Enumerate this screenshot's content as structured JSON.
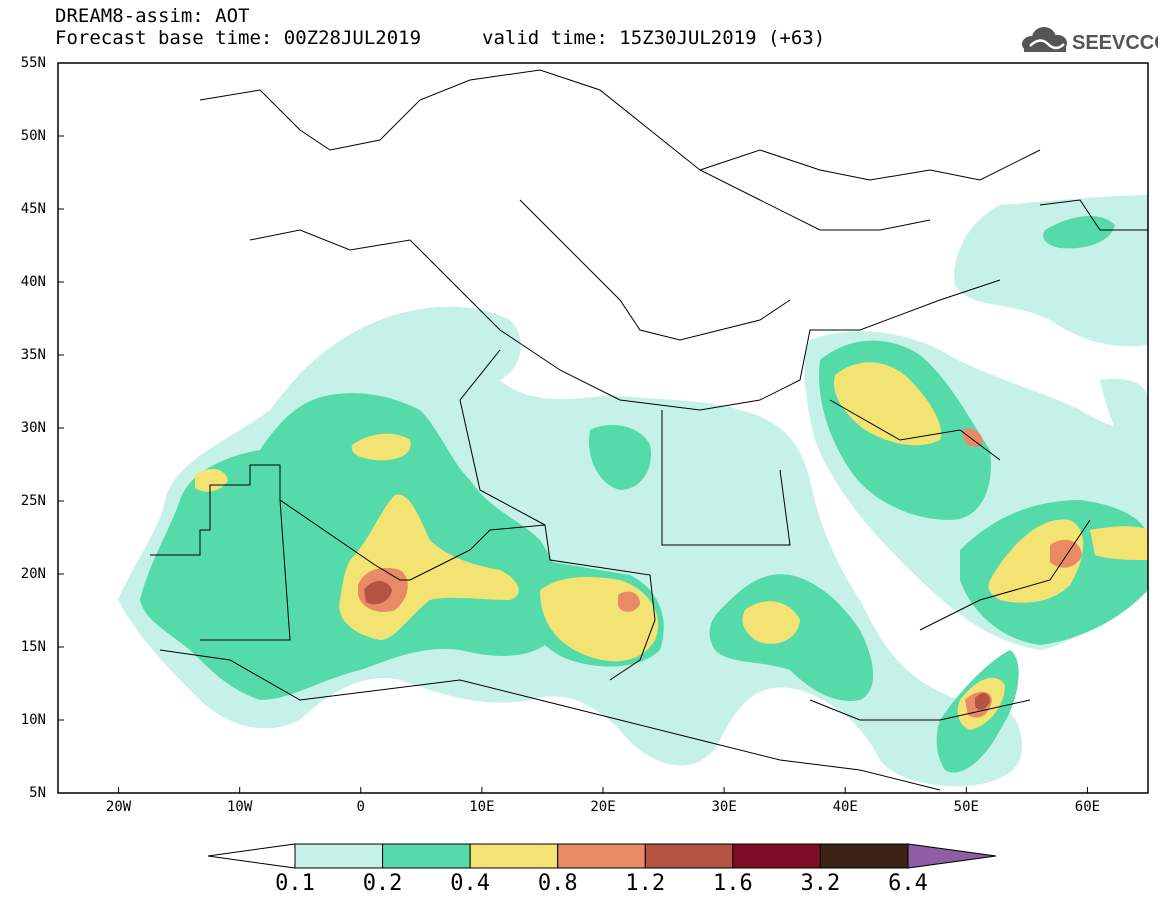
{
  "title": {
    "line1": "DREAM8-assim: AOT",
    "line2": "Forecast base time: 00Z28JUL2019",
    "valid": "valid time: 15Z30JUL2019 (+63)"
  },
  "logo": {
    "text": "SEEVCCC",
    "icon": "cloud-icon"
  },
  "map": {
    "lat_ticks": [
      "55N",
      "50N",
      "45N",
      "40N",
      "35N",
      "30N",
      "25N",
      "20N",
      "15N",
      "10N",
      "5N"
    ],
    "lon_ticks": [
      "20W",
      "10W",
      "0",
      "10E",
      "20E",
      "30E",
      "40E",
      "50E",
      "60E"
    ],
    "extent": {
      "lon": [
        -25,
        65
      ],
      "lat": [
        5,
        55
      ]
    }
  },
  "colorbar": {
    "labels": [
      "0.1",
      "0.2",
      "0.4",
      "0.8",
      "1.2",
      "1.6",
      "3.2",
      "6.4"
    ],
    "colors": [
      "#ffffff",
      "#c6f1e7",
      "#55dbaa",
      "#f3e373",
      "#e88b65",
      "#b65443",
      "#7d0d26",
      "#3b2116",
      "#8e5da3"
    ]
  }
}
